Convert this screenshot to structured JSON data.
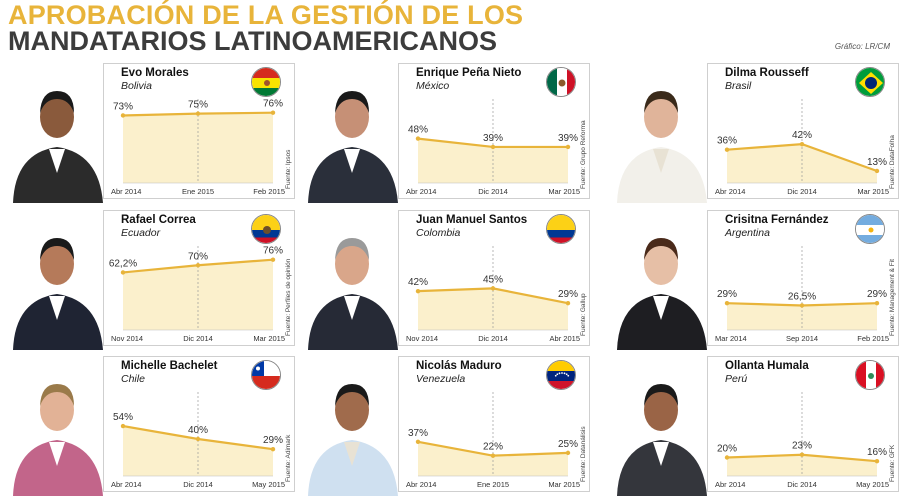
{
  "header": {
    "line1": "APROBACIÓN DE LA GESTIÓN DE LOS",
    "line2": "MANDATARIOS LATINOAMERICANOS",
    "credit": "Gráfico: LR/CM"
  },
  "colors": {
    "line": "#e8b43a",
    "fill": "#fbf0cc",
    "title_gold": "#e8b43a",
    "title_dark": "#3c3c3c"
  },
  "chart_data": [
    {
      "type": "line",
      "name": "Evo Morales",
      "country": "Bolivia",
      "flag": "bolivia",
      "source": "Fuente: Ipsos",
      "x": [
        "Abr 2014",
        "Ene 2015",
        "Feb 2015"
      ],
      "values": [
        73,
        75,
        76
      ],
      "labels": [
        "73%",
        "75%",
        "76%"
      ]
    },
    {
      "type": "line",
      "name": "Enrique Peña Nieto",
      "country": "México",
      "flag": "mexico",
      "source": "Fuente: Grupo Reforma",
      "x": [
        "Abr 2014",
        "Dic 2014",
        "Mar 2015"
      ],
      "values": [
        48,
        39,
        39
      ],
      "labels": [
        "48%",
        "39%",
        "39%"
      ]
    },
    {
      "type": "line",
      "name": "Dilma Rousseff",
      "country": "Brasil",
      "flag": "brasil",
      "source": "Fuente: DataFolha",
      "x": [
        "Abr 2014",
        "Dic 2014",
        "Mar 2015"
      ],
      "values": [
        36,
        42,
        13
      ],
      "labels": [
        "36%",
        "42%",
        "13%"
      ]
    },
    {
      "type": "line",
      "name": "Rafael Correa",
      "country": "Ecuador",
      "flag": "ecuador",
      "source": "Fuente: Perfiles de opinión",
      "x": [
        "Nov 2014",
        "Dic 2014",
        "Mar 2015"
      ],
      "values": [
        62.2,
        70,
        76
      ],
      "labels": [
        "62,2%",
        "70%",
        "76%"
      ]
    },
    {
      "type": "line",
      "name": "Juan Manuel Santos",
      "country": "Colombia",
      "flag": "colombia",
      "source": "Fuente: Gallup",
      "x": [
        "Nov 2014",
        "Dic 2014",
        "Abr 2015"
      ],
      "values": [
        42,
        45,
        29
      ],
      "labels": [
        "42%",
        "45%",
        "29%"
      ]
    },
    {
      "type": "line",
      "name": "Crisitna Fernández",
      "country": "Argentina",
      "flag": "argentina",
      "source": "Fuente: Management & Fit",
      "x": [
        "Mar 2014",
        "Sep 2014",
        "Feb 2015"
      ],
      "values": [
        29,
        26.5,
        29
      ],
      "labels": [
        "29%",
        "26,5%",
        "29%"
      ]
    },
    {
      "type": "line",
      "name": "Michelle Bachelet",
      "country": "Chile",
      "flag": "chile",
      "source": "Fuente: Adimark",
      "x": [
        "Abr 2014",
        "Dic 2014",
        "May 2015"
      ],
      "values": [
        54,
        40,
        29
      ],
      "labels": [
        "54%",
        "40%",
        "29%"
      ]
    },
    {
      "type": "line",
      "name": "Nicolás Maduro",
      "country": "Venezuela",
      "flag": "venezuela",
      "source": "Fuente: Datanálisis",
      "x": [
        "Abr 2014",
        "Ene 2015",
        "Mar 2015"
      ],
      "values": [
        37,
        22,
        25
      ],
      "labels": [
        "37%",
        "22%",
        "25%"
      ]
    },
    {
      "type": "line",
      "name": "Ollanta Humala",
      "country": "Perú",
      "flag": "peru",
      "source": "Fuente: GFK",
      "x": [
        "Abr 2014",
        "Dic 2014",
        "May 2015"
      ],
      "values": [
        20,
        23,
        16
      ],
      "labels": [
        "20%",
        "23%",
        "16%"
      ]
    }
  ]
}
